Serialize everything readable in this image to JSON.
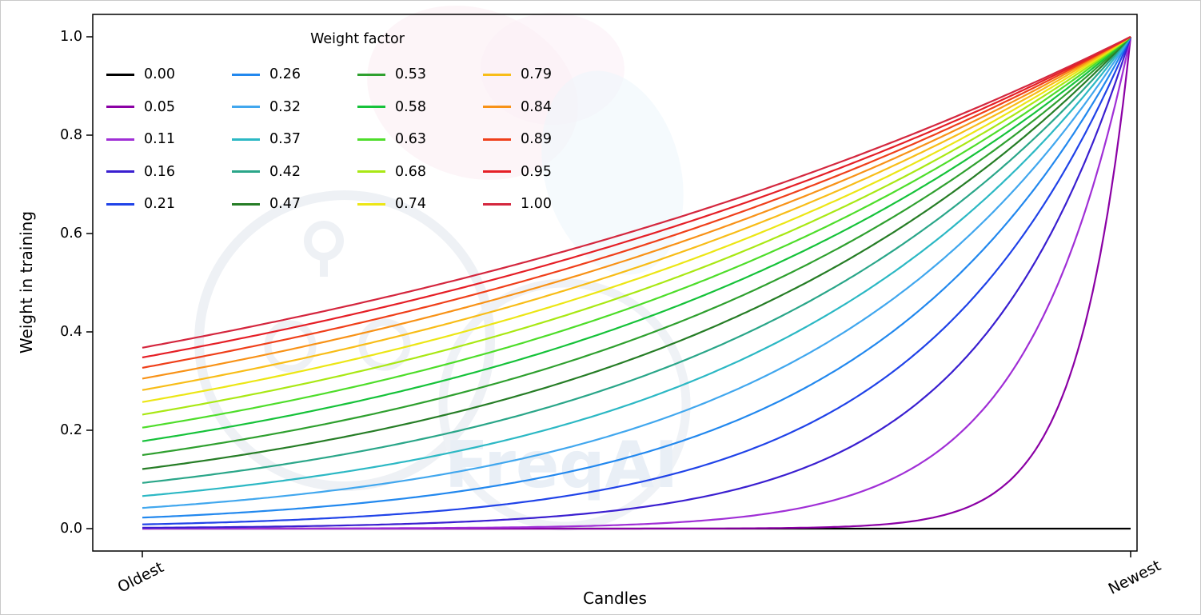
{
  "figure": {
    "background_color": "#ffffff",
    "axes_border_color": "#000000"
  },
  "chart_data": {
    "type": "line",
    "title": "",
    "xlabel": "Candles",
    "ylabel": "Weight in training",
    "x_tick_labels": [
      "Oldest",
      "Newest"
    ],
    "y_ticks": [
      0.0,
      0.2,
      0.4,
      0.6,
      0.8,
      1.0
    ],
    "y_tick_labels": [
      "0.0",
      "0.2",
      "0.4",
      "0.6",
      "0.8",
      "1.0"
    ],
    "ylim": [
      -0.046,
      1.046
    ],
    "grid": false,
    "curve_formula": "weight(t) = exp(-(1 - t) / weight_factor), with t = 0 at Oldest and t = 1 at Newest; weight_factor = 0 gives a flat line at 0",
    "legend": {
      "title": "Weight factor",
      "position": "upper left",
      "columns": 4,
      "rows": 5,
      "frame": false
    },
    "watermark": {
      "text": "FreqAI"
    },
    "series": [
      {
        "label": "0.00",
        "weight_factor": 0.0,
        "color": "#000000"
      },
      {
        "label": "0.05",
        "weight_factor": 0.0526,
        "color": "#8b00a5"
      },
      {
        "label": "0.11",
        "weight_factor": 0.1053,
        "color": "#a02fd6"
      },
      {
        "label": "0.16",
        "weight_factor": 0.1579,
        "color": "#3a1fd0"
      },
      {
        "label": "0.21",
        "weight_factor": 0.2105,
        "color": "#2043e8"
      },
      {
        "label": "0.26",
        "weight_factor": 0.2632,
        "color": "#2288ee"
      },
      {
        "label": "0.32",
        "weight_factor": 0.3158,
        "color": "#41a7ee"
      },
      {
        "label": "0.37",
        "weight_factor": 0.3684,
        "color": "#2cb8c4"
      },
      {
        "label": "0.42",
        "weight_factor": 0.4211,
        "color": "#2aa689"
      },
      {
        "label": "0.47",
        "weight_factor": 0.4737,
        "color": "#267d26"
      },
      {
        "label": "0.53",
        "weight_factor": 0.5263,
        "color": "#2fa02f"
      },
      {
        "label": "0.58",
        "weight_factor": 0.5789,
        "color": "#16c23a"
      },
      {
        "label": "0.63",
        "weight_factor": 0.6316,
        "color": "#4edd2a"
      },
      {
        "label": "0.68",
        "weight_factor": 0.6842,
        "color": "#a9e814"
      },
      {
        "label": "0.74",
        "weight_factor": 0.7368,
        "color": "#ece615"
      },
      {
        "label": "0.79",
        "weight_factor": 0.7895,
        "color": "#f8bd18"
      },
      {
        "label": "0.84",
        "weight_factor": 0.8421,
        "color": "#f89217"
      },
      {
        "label": "0.89",
        "weight_factor": 0.8947,
        "color": "#ef3f1a"
      },
      {
        "label": "0.95",
        "weight_factor": 0.9474,
        "color": "#e51f26"
      },
      {
        "label": "1.00",
        "weight_factor": 1.0,
        "color": "#d4273e"
      }
    ]
  }
}
